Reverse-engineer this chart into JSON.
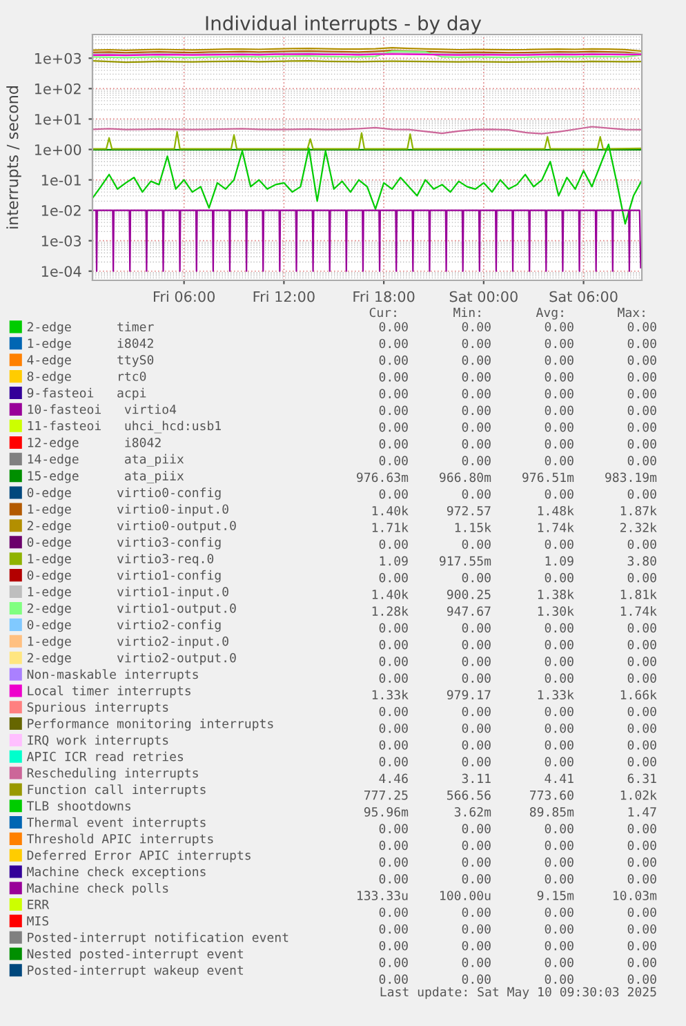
{
  "chart_data": {
    "type": "line",
    "title": "Individual interrupts - by day",
    "ylabel": "interrupts / second",
    "log": "y",
    "grid": true,
    "legend": "bottom",
    "xlim": [
      "2025-05-09T00:30",
      "2025-05-10T09:30"
    ],
    "xticks": [
      {
        "value": "2025-05-09T06:00",
        "label": "Fri 06:00"
      },
      {
        "value": "2025-05-09T12:00",
        "label": "Fri 12:00"
      },
      {
        "value": "2025-05-09T18:00",
        "label": "Fri 18:00"
      },
      {
        "value": "2025-05-10T00:00",
        "label": "Sat 00:00"
      },
      {
        "value": "2025-05-10T06:00",
        "label": "Sat 06:00"
      }
    ],
    "ylim": [
      5e-05,
      6000
    ],
    "yticks": [
      {
        "value": 0.0001,
        "label": "1e-04"
      },
      {
        "value": 0.001,
        "label": "1e-03"
      },
      {
        "value": 0.01,
        "label": "1e-02"
      },
      {
        "value": 0.1,
        "label": "1e-01"
      },
      {
        "value": 1,
        "label": "1e+00"
      },
      {
        "value": 10,
        "label": "1e+01"
      },
      {
        "value": 100,
        "label": "1e+02"
      },
      {
        "value": 1000,
        "label": "1e+03"
      }
    ],
    "x": [
      "2025-05-09T00:30",
      "2025-05-09T01:30",
      "2025-05-09T02:30",
      "2025-05-09T03:30",
      "2025-05-09T04:30",
      "2025-05-09T05:30",
      "2025-05-09T06:30",
      "2025-05-09T07:30",
      "2025-05-09T08:30",
      "2025-05-09T09:30",
      "2025-05-09T10:30",
      "2025-05-09T11:30",
      "2025-05-09T12:30",
      "2025-05-09T13:30",
      "2025-05-09T14:30",
      "2025-05-09T15:30",
      "2025-05-09T16:30",
      "2025-05-09T17:30",
      "2025-05-09T18:30",
      "2025-05-09T19:30",
      "2025-05-09T20:30",
      "2025-05-09T21:30",
      "2025-05-09T22:30",
      "2025-05-09T23:30",
      "2025-05-10T00:30",
      "2025-05-10T01:30",
      "2025-05-10T02:30",
      "2025-05-10T03:30",
      "2025-05-10T04:30",
      "2025-05-10T05:30",
      "2025-05-10T06:30",
      "2025-05-10T07:30",
      "2025-05-10T08:30",
      "2025-05-10T09:30"
    ],
    "series": [
      {
        "name": "2-edge      timer",
        "color": "#00cc00",
        "values": [
          null,
          null,
          null,
          null,
          null,
          null,
          null,
          null,
          null,
          null,
          null,
          null,
          null,
          null,
          null,
          null,
          null,
          null,
          null,
          null,
          null,
          null,
          null,
          null,
          null,
          null,
          null,
          null,
          null,
          null,
          null,
          null,
          null,
          null
        ]
      },
      {
        "name": "1-edge      i8042",
        "color": "#0066b3",
        "values": [
          null,
          null,
          null,
          null,
          null,
          null,
          null,
          null,
          null,
          null,
          null,
          null,
          null,
          null,
          null,
          null,
          null,
          null,
          null,
          null,
          null,
          null,
          null,
          null,
          null,
          null,
          null,
          null,
          null,
          null,
          null,
          null,
          null,
          null
        ]
      },
      {
        "name": "4-edge      ttyS0",
        "color": "#ff8000",
        "values": [
          null,
          null,
          null,
          null,
          null,
          null,
          null,
          null,
          null,
          null,
          null,
          null,
          null,
          null,
          null,
          null,
          null,
          null,
          null,
          null,
          null,
          null,
          null,
          null,
          null,
          null,
          null,
          null,
          null,
          null,
          null,
          null,
          null,
          null
        ]
      },
      {
        "name": "8-edge      rtc0",
        "color": "#ffcc00",
        "values": [
          null,
          null,
          null,
          null,
          null,
          null,
          null,
          null,
          null,
          null,
          null,
          null,
          null,
          null,
          null,
          null,
          null,
          null,
          null,
          null,
          null,
          null,
          null,
          null,
          null,
          null,
          null,
          null,
          null,
          null,
          null,
          null,
          null,
          null
        ]
      },
      {
        "name": "9-fasteoi   acpi",
        "color": "#330099",
        "values": [
          null,
          null,
          null,
          null,
          null,
          null,
          null,
          null,
          null,
          null,
          null,
          null,
          null,
          null,
          null,
          null,
          null,
          null,
          null,
          null,
          null,
          null,
          null,
          null,
          null,
          null,
          null,
          null,
          null,
          null,
          null,
          null,
          null,
          null
        ]
      },
      {
        "name": "10-fasteoi   virtio4",
        "color": "#990099",
        "values": [
          null,
          null,
          null,
          null,
          null,
          null,
          null,
          null,
          null,
          null,
          null,
          null,
          null,
          null,
          null,
          null,
          null,
          null,
          null,
          null,
          null,
          null,
          null,
          null,
          null,
          null,
          null,
          null,
          null,
          null,
          null,
          null,
          null,
          null
        ]
      },
      {
        "name": "11-fasteoi   uhci_hcd:usb1",
        "color": "#ccff00",
        "values": [
          null,
          null,
          null,
          null,
          null,
          null,
          null,
          null,
          null,
          null,
          null,
          null,
          null,
          null,
          null,
          null,
          null,
          null,
          null,
          null,
          null,
          null,
          null,
          null,
          null,
          null,
          null,
          null,
          null,
          null,
          null,
          null,
          null,
          null
        ]
      },
      {
        "name": "12-edge      i8042",
        "color": "#ff0000",
        "values": [
          null,
          null,
          null,
          null,
          null,
          null,
          null,
          null,
          null,
          null,
          null,
          null,
          null,
          null,
          null,
          null,
          null,
          null,
          null,
          null,
          null,
          null,
          null,
          null,
          null,
          null,
          null,
          null,
          null,
          null,
          null,
          null,
          null,
          null
        ]
      },
      {
        "name": "14-edge      ata_piix",
        "color": "#808080",
        "values": [
          null,
          null,
          null,
          null,
          null,
          null,
          null,
          null,
          null,
          null,
          null,
          null,
          null,
          null,
          null,
          null,
          null,
          null,
          null,
          null,
          null,
          null,
          null,
          null,
          null,
          null,
          null,
          null,
          null,
          null,
          null,
          null,
          null,
          null
        ]
      },
      {
        "name": "15-edge      ata_piix",
        "color": "#008f00",
        "values": [
          0.977,
          0.977,
          0.977,
          0.977,
          0.977,
          0.977,
          0.977,
          0.977,
          0.977,
          0.977,
          0.977,
          0.977,
          0.977,
          0.977,
          0.977,
          0.977,
          0.977,
          0.977,
          0.977,
          0.977,
          0.977,
          0.977,
          0.977,
          0.977,
          0.977,
          0.977,
          0.977,
          0.977,
          0.977,
          0.977,
          0.977,
          0.977,
          0.977,
          0.977
        ]
      },
      {
        "name": "0-edge      virtio0-config",
        "color": "#00487d",
        "values": [
          null,
          null,
          null,
          null,
          null,
          null,
          null,
          null,
          null,
          null,
          null,
          null,
          null,
          null,
          null,
          null,
          null,
          null,
          null,
          null,
          null,
          null,
          null,
          null,
          null,
          null,
          null,
          null,
          null,
          null,
          null,
          null,
          null,
          null
        ]
      },
      {
        "name": "1-edge      virtio0-input.0",
        "color": "#b35a00",
        "values": [
          1550,
          1600,
          1520,
          1580,
          1620,
          1580,
          1540,
          1600,
          1620,
          1650,
          1600,
          1660,
          1700,
          1720,
          1680,
          1640,
          1600,
          1680,
          1800,
          1720,
          1660,
          1600,
          1550,
          1580,
          1560,
          1520,
          1540,
          1580,
          1620,
          1600,
          1660,
          1620,
          1580,
          1400
        ]
      },
      {
        "name": "2-edge      virtio0-output.0",
        "color": "#b38f00",
        "values": [
          1850,
          1900,
          1820,
          1880,
          1950,
          1900,
          1860,
          1920,
          1980,
          2000,
          1950,
          2020,
          2080,
          2100,
          2050,
          2000,
          1980,
          2050,
          2200,
          2100,
          2020,
          1960,
          1900,
          1950,
          1920,
          1880,
          1900,
          1960,
          2000,
          1950,
          2020,
          1980,
          1920,
          1710
        ]
      },
      {
        "name": "0-edge      virtio3-config",
        "color": "#6b006b",
        "values": [
          null,
          null,
          null,
          null,
          null,
          null,
          null,
          null,
          null,
          null,
          null,
          null,
          null,
          null,
          null,
          null,
          null,
          null,
          null,
          null,
          null,
          null,
          null,
          null,
          null,
          null,
          null,
          null,
          null,
          null,
          null,
          null,
          null,
          null
        ]
      },
      {
        "name": "1-edge      virtio3-req.0",
        "color": "#8fb300",
        "x": [
          "2025-05-09T00:30",
          "2025-05-09T01:20",
          "2025-05-09T01:30",
          "2025-05-09T01:40",
          "2025-05-09T05:25",
          "2025-05-09T05:35",
          "2025-05-09T05:45",
          "2025-05-09T08:50",
          "2025-05-09T09:00",
          "2025-05-09T09:10",
          "2025-05-09T13:25",
          "2025-05-09T13:35",
          "2025-05-09T13:45",
          "2025-05-09T16:30",
          "2025-05-09T16:40",
          "2025-05-09T16:50",
          "2025-05-09T19:25",
          "2025-05-09T19:35",
          "2025-05-09T19:45",
          "2025-05-10T03:40",
          "2025-05-10T03:50",
          "2025-05-10T04:00",
          "2025-05-10T06:50",
          "2025-05-10T07:00",
          "2025-05-10T07:10",
          "2025-05-10T09:30"
        ],
        "values": [
          1.05,
          1.05,
          2.4,
          1.05,
          1.05,
          3.8,
          1.05,
          1.05,
          3.0,
          1.05,
          1.05,
          2.2,
          1.05,
          1.05,
          3.5,
          1.05,
          1.05,
          3.2,
          1.05,
          1.05,
          2.6,
          1.05,
          1.05,
          2.6,
          1.05,
          1.09
        ]
      },
      {
        "name": "0-edge      virtio1-config",
        "color": "#b30000",
        "values": [
          null,
          null,
          null,
          null,
          null,
          null,
          null,
          null,
          null,
          null,
          null,
          null,
          null,
          null,
          null,
          null,
          null,
          null,
          null,
          null,
          null,
          null,
          null,
          null,
          null,
          null,
          null,
          null,
          null,
          null,
          null,
          null,
          null,
          null
        ]
      },
      {
        "name": "1-edge      virtio1-input.0",
        "color": "#bebebe",
        "values": [
          1400,
          1380,
          1350,
          1380,
          1420,
          1380,
          1350,
          1400,
          1420,
          1440,
          1400,
          1450,
          1480,
          1500,
          1460,
          1420,
          1400,
          1450,
          1520,
          1480,
          1440,
          1400,
          1380,
          1400,
          1380,
          1360,
          1370,
          1400,
          1420,
          1400,
          1440,
          1420,
          1400,
          1400
        ]
      },
      {
        "name": "2-edge      virtio1-output.0",
        "color": "#80ff80",
        "values": [
          1100,
          1080,
          1050,
          1080,
          1100,
          1070,
          1050,
          1090,
          1110,
          1130,
          1100,
          1140,
          1160,
          1180,
          1140,
          1120,
          1100,
          1150,
          1700,
          1650,
          1600,
          1100,
          1080,
          1100,
          1080,
          1060,
          1070,
          1100,
          1120,
          1100,
          1140,
          1120,
          1100,
          1280
        ]
      },
      {
        "name": "0-edge      virtio2-config",
        "color": "#80c9ff",
        "values": [
          null,
          null,
          null,
          null,
          null,
          null,
          null,
          null,
          null,
          null,
          null,
          null,
          null,
          null,
          null,
          null,
          null,
          null,
          null,
          null,
          null,
          null,
          null,
          null,
          null,
          null,
          null,
          null,
          null,
          null,
          null,
          null,
          null,
          null
        ]
      },
      {
        "name": "1-edge      virtio2-input.0",
        "color": "#ffc080",
        "values": [
          null,
          null,
          null,
          null,
          null,
          null,
          null,
          null,
          null,
          null,
          null,
          null,
          null,
          null,
          null,
          null,
          null,
          null,
          null,
          null,
          null,
          null,
          null,
          null,
          null,
          null,
          null,
          null,
          null,
          null,
          null,
          null,
          null,
          null
        ]
      },
      {
        "name": "2-edge      virtio2-output.0",
        "color": "#ffe680",
        "values": [
          null,
          null,
          null,
          null,
          null,
          null,
          null,
          null,
          null,
          null,
          null,
          null,
          null,
          null,
          null,
          null,
          null,
          null,
          null,
          null,
          null,
          null,
          null,
          null,
          null,
          null,
          null,
          null,
          null,
          null,
          null,
          null,
          null,
          null
        ]
      },
      {
        "name": "Non-maskable interrupts",
        "color": "#aa80ff",
        "values": [
          null,
          null,
          null,
          null,
          null,
          null,
          null,
          null,
          null,
          null,
          null,
          null,
          null,
          null,
          null,
          null,
          null,
          null,
          null,
          null,
          null,
          null,
          null,
          null,
          null,
          null,
          null,
          null,
          null,
          null,
          null,
          null,
          null,
          null
        ]
      },
      {
        "name": "Local timer interrupts",
        "color": "#ee00cc",
        "values": [
          1260,
          1280,
          1250,
          1280,
          1310,
          1290,
          1270,
          1300,
          1310,
          1330,
          1300,
          1340,
          1350,
          1360,
          1330,
          1320,
          1300,
          1340,
          1370,
          1350,
          1330,
          1300,
          1280,
          1300,
          1290,
          1270,
          1280,
          1310,
          1330,
          1310,
          1340,
          1320,
          1310,
          1330
        ]
      },
      {
        "name": "Spurious interrupts",
        "color": "#ff8080",
        "values": [
          null,
          null,
          null,
          null,
          null,
          null,
          null,
          null,
          null,
          null,
          null,
          null,
          null,
          null,
          null,
          null,
          null,
          null,
          null,
          null,
          null,
          null,
          null,
          null,
          null,
          null,
          null,
          null,
          null,
          null,
          null,
          null,
          null,
          null
        ]
      },
      {
        "name": "Performance monitoring interrupts",
        "color": "#666600",
        "values": [
          null,
          null,
          null,
          null,
          null,
          null,
          null,
          null,
          null,
          null,
          null,
          null,
          null,
          null,
          null,
          null,
          null,
          null,
          null,
          null,
          null,
          null,
          null,
          null,
          null,
          null,
          null,
          null,
          null,
          null,
          null,
          null,
          null,
          null
        ]
      },
      {
        "name": "IRQ work interrupts",
        "color": "#ffbfff",
        "values": [
          null,
          null,
          null,
          null,
          null,
          null,
          null,
          null,
          null,
          null,
          null,
          null,
          null,
          null,
          null,
          null,
          null,
          null,
          null,
          null,
          null,
          null,
          null,
          null,
          null,
          null,
          null,
          null,
          null,
          null,
          null,
          null,
          null,
          null
        ]
      },
      {
        "name": "APIC ICR read retries",
        "color": "#00ffcc",
        "values": [
          null,
          null,
          null,
          null,
          null,
          null,
          null,
          null,
          null,
          null,
          null,
          null,
          null,
          null,
          null,
          null,
          null,
          null,
          null,
          null,
          null,
          null,
          null,
          null,
          null,
          null,
          null,
          null,
          null,
          null,
          null,
          null,
          null,
          null
        ]
      },
      {
        "name": "Rescheduling interrupts",
        "color": "#cc6699",
        "values": [
          4.6,
          4.8,
          4.5,
          4.6,
          4.7,
          4.6,
          4.5,
          4.6,
          4.7,
          4.8,
          4.6,
          4.5,
          4.6,
          4.7,
          4.5,
          4.6,
          4.8,
          5.2,
          4.6,
          4.5,
          3.9,
          3.4,
          4.0,
          4.5,
          4.6,
          4.4,
          3.6,
          3.3,
          3.8,
          4.6,
          5.6,
          5.0,
          4.5,
          4.46
        ]
      },
      {
        "name": "Function call interrupts",
        "color": "#999900",
        "values": [
          820,
          780,
          740,
          760,
          790,
          770,
          760,
          780,
          790,
          800,
          770,
          790,
          810,
          820,
          790,
          780,
          770,
          790,
          800,
          790,
          780,
          770,
          760,
          770,
          760,
          750,
          760,
          770,
          780,
          770,
          790,
          780,
          770,
          777
        ]
      },
      {
        "name": "TLB shootdowns",
        "color": "#00cc00",
        "x": [
          "2025-05-09T00:30",
          "2025-05-09T01:00",
          "2025-05-09T01:30",
          "2025-05-09T02:00",
          "2025-05-09T02:30",
          "2025-05-09T03:00",
          "2025-05-09T03:30",
          "2025-05-09T04:00",
          "2025-05-09T04:30",
          "2025-05-09T05:00",
          "2025-05-09T05:30",
          "2025-05-09T06:00",
          "2025-05-09T06:30",
          "2025-05-09T07:00",
          "2025-05-09T07:30",
          "2025-05-09T08:00",
          "2025-05-09T08:30",
          "2025-05-09T09:00",
          "2025-05-09T09:30",
          "2025-05-09T10:00",
          "2025-05-09T10:30",
          "2025-05-09T11:00",
          "2025-05-09T11:30",
          "2025-05-09T12:00",
          "2025-05-09T12:30",
          "2025-05-09T13:00",
          "2025-05-09T13:30",
          "2025-05-09T14:00",
          "2025-05-09T14:30",
          "2025-05-09T15:00",
          "2025-05-09T15:30",
          "2025-05-09T16:00",
          "2025-05-09T16:30",
          "2025-05-09T17:00",
          "2025-05-09T17:30",
          "2025-05-09T18:00",
          "2025-05-09T18:30",
          "2025-05-09T19:00",
          "2025-05-09T19:30",
          "2025-05-09T20:00",
          "2025-05-09T20:30",
          "2025-05-09T21:00",
          "2025-05-09T21:30",
          "2025-05-09T22:00",
          "2025-05-09T22:30",
          "2025-05-09T23:00",
          "2025-05-09T23:30",
          "2025-05-10T00:00",
          "2025-05-10T00:30",
          "2025-05-10T01:00",
          "2025-05-10T01:30",
          "2025-05-10T02:00",
          "2025-05-10T02:30",
          "2025-05-10T03:00",
          "2025-05-10T03:30",
          "2025-05-10T04:00",
          "2025-05-10T04:30",
          "2025-05-10T05:00",
          "2025-05-10T05:30",
          "2025-05-10T06:00",
          "2025-05-10T06:30",
          "2025-05-10T07:00",
          "2025-05-10T07:30",
          "2025-05-10T08:00",
          "2025-05-10T08:30",
          "2025-05-10T09:00",
          "2025-05-10T09:30"
        ],
        "values": [
          0.025,
          0.06,
          0.15,
          0.05,
          0.08,
          0.12,
          0.04,
          0.09,
          0.07,
          0.6,
          0.05,
          0.1,
          0.04,
          0.06,
          0.012,
          0.08,
          0.05,
          0.1,
          0.9,
          0.06,
          0.1,
          0.05,
          0.07,
          0.08,
          0.04,
          0.06,
          1.1,
          0.02,
          0.9,
          0.05,
          0.09,
          0.04,
          0.1,
          0.06,
          0.011,
          0.08,
          0.05,
          0.12,
          0.06,
          0.03,
          0.1,
          0.05,
          0.07,
          0.04,
          0.09,
          0.06,
          0.05,
          0.08,
          0.04,
          0.1,
          0.05,
          0.07,
          0.15,
          0.06,
          0.1,
          0.4,
          0.03,
          0.12,
          0.05,
          0.2,
          0.06,
          0.3,
          1.47,
          0.08,
          0.0036,
          0.03,
          0.096
        ]
      },
      {
        "name": "Thermal event interrupts",
        "color": "#0066b3",
        "values": [
          null,
          null,
          null,
          null,
          null,
          null,
          null,
          null,
          null,
          null,
          null,
          null,
          null,
          null,
          null,
          null,
          null,
          null,
          null,
          null,
          null,
          null,
          null,
          null,
          null,
          null,
          null,
          null,
          null,
          null,
          null,
          null,
          null,
          null
        ]
      },
      {
        "name": "Threshold APIC interrupts",
        "color": "#ff8000",
        "values": [
          null,
          null,
          null,
          null,
          null,
          null,
          null,
          null,
          null,
          null,
          null,
          null,
          null,
          null,
          null,
          null,
          null,
          null,
          null,
          null,
          null,
          null,
          null,
          null,
          null,
          null,
          null,
          null,
          null,
          null,
          null,
          null,
          null,
          null
        ]
      },
      {
        "name": "Deferred Error APIC interrupts",
        "color": "#ffcc00",
        "values": [
          null,
          null,
          null,
          null,
          null,
          null,
          null,
          null,
          null,
          null,
          null,
          null,
          null,
          null,
          null,
          null,
          null,
          null,
          null,
          null,
          null,
          null,
          null,
          null,
          null,
          null,
          null,
          null,
          null,
          null,
          null,
          null,
          null,
          null
        ]
      },
      {
        "name": "Machine check exceptions",
        "color": "#330099",
        "values": [
          null,
          null,
          null,
          null,
          null,
          null,
          null,
          null,
          null,
          null,
          null,
          null,
          null,
          null,
          null,
          null,
          null,
          null,
          null,
          null,
          null,
          null,
          null,
          null,
          null,
          null,
          null,
          null,
          null,
          null,
          null,
          null,
          null,
          null
        ]
      },
      {
        "name": "Machine check polls",
        "color": "#990099",
        "x": [
          "2025-05-09T00:30",
          "2025-05-09T00:43",
          "2025-05-09T00:45",
          "2025-05-09T00:47",
          "2025-05-09T01:43",
          "2025-05-09T01:45",
          "2025-05-09T01:47",
          "2025-05-09T02:43",
          "2025-05-09T02:45",
          "2025-05-09T02:47",
          "2025-05-09T03:43",
          "2025-05-09T03:45",
          "2025-05-09T03:47",
          "2025-05-09T04:43",
          "2025-05-09T04:45",
          "2025-05-09T04:47",
          "2025-05-09T05:43",
          "2025-05-09T05:45",
          "2025-05-09T05:47",
          "2025-05-09T06:43",
          "2025-05-09T06:45",
          "2025-05-09T06:47",
          "2025-05-09T07:43",
          "2025-05-09T07:45",
          "2025-05-09T07:47",
          "2025-05-09T08:43",
          "2025-05-09T08:45",
          "2025-05-09T08:47",
          "2025-05-09T09:43",
          "2025-05-09T09:45",
          "2025-05-09T09:47",
          "2025-05-09T10:43",
          "2025-05-09T10:45",
          "2025-05-09T10:47",
          "2025-05-09T11:43",
          "2025-05-09T11:45",
          "2025-05-09T11:47",
          "2025-05-09T12:43",
          "2025-05-09T12:45",
          "2025-05-09T12:47",
          "2025-05-09T13:43",
          "2025-05-09T13:45",
          "2025-05-09T13:47",
          "2025-05-09T14:43",
          "2025-05-09T14:45",
          "2025-05-09T14:47",
          "2025-05-09T15:43",
          "2025-05-09T15:45",
          "2025-05-09T15:47",
          "2025-05-09T16:43",
          "2025-05-09T16:45",
          "2025-05-09T16:47",
          "2025-05-09T17:43",
          "2025-05-09T17:45",
          "2025-05-09T17:47",
          "2025-05-09T18:43",
          "2025-05-09T18:45",
          "2025-05-09T18:47",
          "2025-05-09T19:43",
          "2025-05-09T19:45",
          "2025-05-09T19:47",
          "2025-05-09T20:43",
          "2025-05-09T20:45",
          "2025-05-09T20:47",
          "2025-05-09T21:43",
          "2025-05-09T21:45",
          "2025-05-09T21:47",
          "2025-05-09T22:43",
          "2025-05-09T22:45",
          "2025-05-09T22:47",
          "2025-05-09T23:43",
          "2025-05-09T23:45",
          "2025-05-09T23:47",
          "2025-05-10T00:43",
          "2025-05-10T00:45",
          "2025-05-10T00:47",
          "2025-05-10T01:43",
          "2025-05-10T01:45",
          "2025-05-10T01:47",
          "2025-05-10T02:43",
          "2025-05-10T02:45",
          "2025-05-10T02:47",
          "2025-05-10T03:43",
          "2025-05-10T03:45",
          "2025-05-10T03:47",
          "2025-05-10T04:43",
          "2025-05-10T04:45",
          "2025-05-10T04:47",
          "2025-05-10T05:43",
          "2025-05-10T05:45",
          "2025-05-10T05:47",
          "2025-05-10T06:43",
          "2025-05-10T06:45",
          "2025-05-10T06:47",
          "2025-05-10T07:43",
          "2025-05-10T07:45",
          "2025-05-10T07:47",
          "2025-05-10T08:43",
          "2025-05-10T08:45",
          "2025-05-10T08:47",
          "2025-05-10T09:22",
          "2025-05-10T09:26"
        ],
        "values": [
          0.01,
          0.01,
          0.0001,
          0.01,
          0.01,
          0.0001,
          0.01,
          0.01,
          0.0001,
          0.01,
          0.01,
          0.0001,
          0.01,
          0.01,
          0.0001,
          0.01,
          0.01,
          0.0001,
          0.01,
          0.01,
          0.0001,
          0.01,
          0.01,
          0.0001,
          0.01,
          0.01,
          0.0001,
          0.01,
          0.01,
          0.0001,
          0.01,
          0.01,
          0.0001,
          0.01,
          0.01,
          0.0001,
          0.01,
          0.01,
          0.0001,
          0.01,
          0.01,
          0.0001,
          0.01,
          0.01,
          0.0001,
          0.01,
          0.01,
          0.0001,
          0.01,
          0.01,
          0.0001,
          0.01,
          0.01,
          0.0001,
          0.01,
          0.01,
          0.0001,
          0.01,
          0.01,
          0.0001,
          0.01,
          0.01,
          0.0001,
          0.01,
          0.01,
          0.0001,
          0.01,
          0.01,
          0.0001,
          0.01,
          0.01,
          0.0001,
          0.01,
          0.01,
          0.0001,
          0.01,
          0.01,
          0.0001,
          0.01,
          0.01,
          0.0001,
          0.01,
          0.01,
          0.0001,
          0.01,
          0.01,
          0.0001,
          0.01,
          0.01,
          0.0001,
          0.01,
          0.01,
          0.0001,
          0.01,
          0.01,
          0.0001,
          0.01,
          0.01,
          0.0001,
          0.01,
          0.01,
          0.00013
        ]
      },
      {
        "name": "ERR",
        "color": "#ccff00",
        "values": [
          null,
          null,
          null,
          null,
          null,
          null,
          null,
          null,
          null,
          null,
          null,
          null,
          null,
          null,
          null,
          null,
          null,
          null,
          null,
          null,
          null,
          null,
          null,
          null,
          null,
          null,
          null,
          null,
          null,
          null,
          null,
          null,
          null,
          null
        ]
      },
      {
        "name": "MIS",
        "color": "#ff0000",
        "values": [
          null,
          null,
          null,
          null,
          null,
          null,
          null,
          null,
          null,
          null,
          null,
          null,
          null,
          null,
          null,
          null,
          null,
          null,
          null,
          null,
          null,
          null,
          null,
          null,
          null,
          null,
          null,
          null,
          null,
          null,
          null,
          null,
          null,
          null
        ]
      },
      {
        "name": "Posted-interrupt notification event",
        "color": "#808080",
        "values": [
          null,
          null,
          null,
          null,
          null,
          null,
          null,
          null,
          null,
          null,
          null,
          null,
          null,
          null,
          null,
          null,
          null,
          null,
          null,
          null,
          null,
          null,
          null,
          null,
          null,
          null,
          null,
          null,
          null,
          null,
          null,
          null,
          null,
          null
        ]
      },
      {
        "name": "Nested posted-interrupt event",
        "color": "#008f00",
        "values": [
          null,
          null,
          null,
          null,
          null,
          null,
          null,
          null,
          null,
          null,
          null,
          null,
          null,
          null,
          null,
          null,
          null,
          null,
          null,
          null,
          null,
          null,
          null,
          null,
          null,
          null,
          null,
          null,
          null,
          null,
          null,
          null,
          null,
          null
        ]
      },
      {
        "name": "Posted-interrupt wakeup event",
        "color": "#00487d",
        "values": [
          null,
          null,
          null,
          null,
          null,
          null,
          null,
          null,
          null,
          null,
          null,
          null,
          null,
          null,
          null,
          null,
          null,
          null,
          null,
          null,
          null,
          null,
          null,
          null,
          null,
          null,
          null,
          null,
          null,
          null,
          null,
          null,
          null,
          null
        ]
      }
    ],
    "annotations": [
      "Cur:",
      "Min:",
      "Avg:",
      "Max:",
      "0.00",
      "0.00",
      "0.00",
      "0.00",
      "0.00",
      "0.00",
      "0.00",
      "0.00",
      "0.00",
      "0.00",
      "0.00",
      "0.00",
      "0.00",
      "0.00",
      "0.00",
      "0.00",
      "0.00",
      "0.00",
      "0.00",
      "0.00",
      "0.00",
      "0.00",
      "0.00",
      "0.00",
      "0.00",
      "0.00",
      "0.00",
      "0.00",
      "0.00",
      "0.00",
      "0.00",
      "0.00",
      "0.00",
      "0.00",
      "0.00",
      "0.00",
      "976.63m",
      "966.80m",
      "976.51m",
      "983.19m",
      "0.00",
      "0.00",
      "0.00",
      "0.00",
      "1.40k",
      "972.57",
      "1.48k",
      "1.87k",
      "1.71k",
      "1.15k",
      "1.74k",
      "2.32k",
      "0.00",
      "0.00",
      "0.00",
      "0.00",
      "1.09",
      "917.55m",
      "1.09",
      "3.80",
      "0.00",
      "0.00",
      "0.00",
      "0.00",
      "1.40k",
      "900.25",
      "1.38k",
      "1.81k",
      "1.28k",
      "947.67",
      "1.30k",
      "1.74k",
      "0.00",
      "0.00",
      "0.00",
      "0.00",
      "0.00",
      "0.00",
      "0.00",
      "0.00",
      "0.00",
      "0.00",
      "0.00",
      "0.00",
      "0.00",
      "0.00",
      "0.00",
      "0.00",
      "1.33k",
      "979.17",
      "1.33k",
      "1.66k",
      "0.00",
      "0.00",
      "0.00",
      "0.00",
      "0.00",
      "0.00",
      "0.00",
      "0.00",
      "0.00",
      "0.00",
      "0.00",
      "0.00",
      "0.00",
      "0.00",
      "0.00",
      "0.00",
      "4.46",
      "3.11",
      "4.41",
      "6.31",
      "777.25",
      "566.56",
      "773.60",
      "1.02k",
      "95.96m",
      "3.62m",
      "89.85m",
      "1.47",
      "0.00",
      "0.00",
      "0.00",
      "0.00",
      "0.00",
      "0.00",
      "0.00",
      "0.00",
      "0.00",
      "0.00",
      "0.00",
      "0.00",
      "0.00",
      "0.00",
      "0.00",
      "0.00",
      "133.33u",
      "100.00u",
      "9.15m",
      "10.03m",
      "0.00",
      "0.00",
      "0.00",
      "0.00",
      "0.00",
      "0.00",
      "0.00",
      "0.00",
      "0.00",
      "0.00",
      "0.00",
      "0.00",
      "0.00",
      "0.00",
      "0.00",
      "0.00",
      "0.00",
      "0.00",
      "0.00",
      "0.00",
      "Last update: Sat May 10 09:30:03 2025"
    ]
  }
}
